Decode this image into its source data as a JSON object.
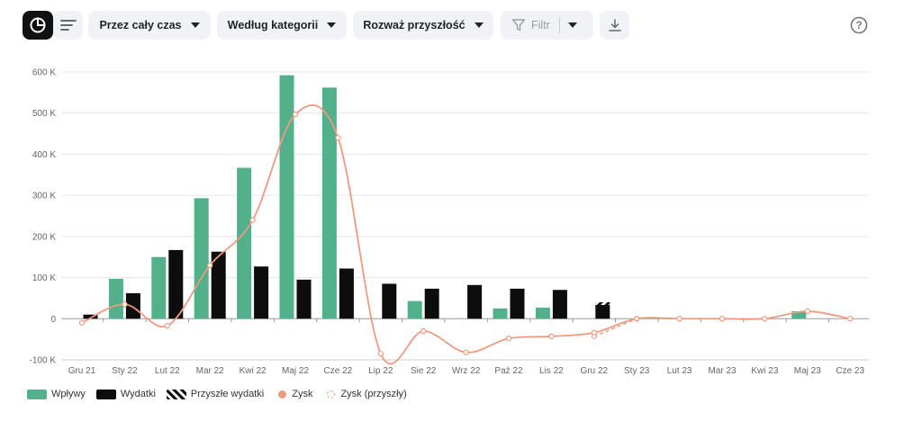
{
  "toolbar": {
    "period_label": "Przez cały czas",
    "group_label": "Według kategorii",
    "future_label": "Rozważ przyszłość",
    "filter_label": "Filtr"
  },
  "legend": {
    "income": "Wpływy",
    "expenses": "Wydatki",
    "future_expenses": "Przyszłe wydatki",
    "profit": "Zysk",
    "future_profit": "Zysk (przyszły)"
  },
  "colors": {
    "income": "#52b08a",
    "expenses": "#0d0d0d",
    "profit": "#ef9a80",
    "grid": "#e6e6e6",
    "axis_text": "#666666"
  },
  "chart_data": {
    "type": "bar",
    "categories": [
      "Gru 21",
      "Sty 22",
      "Lut 22",
      "Mar 22",
      "Kwi 22",
      "Maj 22",
      "Cze 22",
      "Lip 22",
      "Sie 22",
      "Wrz 22",
      "Paź 22",
      "Lis 22",
      "Gru 22",
      "Sty 23",
      "Lut 23",
      "Mar 23",
      "Kwi 23",
      "Maj 23",
      "Cze 23"
    ],
    "y_tick_labels": [
      "-100 K",
      "0",
      "100 K",
      "200 K",
      "300 K",
      "400 K",
      "500 K",
      "600 K"
    ],
    "ylim": [
      -100000,
      600000
    ],
    "grid": true,
    "legend_position": "bottom-left",
    "series": [
      {
        "name": "Wpływy",
        "type": "bar",
        "values": [
          0,
          97000,
          150000,
          293000,
          367000,
          592000,
          562000,
          0,
          43000,
          0,
          25000,
          27000,
          0,
          0,
          0,
          0,
          0,
          18000,
          0
        ]
      },
      {
        "name": "Wydatki",
        "type": "bar",
        "values": [
          10000,
          62000,
          167000,
          163000,
          127000,
          95000,
          122000,
          85000,
          73000,
          82000,
          73000,
          70000,
          40000,
          0,
          0,
          0,
          0,
          0,
          0
        ]
      },
      {
        "name": "Przyszłe wydatki",
        "type": "bar",
        "values": [
          0,
          0,
          0,
          0,
          0,
          0,
          0,
          0,
          0,
          0,
          0,
          0,
          5000,
          0,
          0,
          0,
          0,
          0,
          0
        ]
      },
      {
        "name": "Zysk",
        "type": "line",
        "values": [
          -10000,
          35000,
          -17000,
          130000,
          240000,
          497000,
          440000,
          -85000,
          -30000,
          -82000,
          -48000,
          -43000,
          -34000,
          0,
          0,
          0,
          0,
          18000,
          0
        ]
      },
      {
        "name": "Zysk (przyszły)",
        "type": "line",
        "values": [
          null,
          null,
          null,
          null,
          null,
          null,
          null,
          null,
          null,
          null,
          null,
          null,
          -43000,
          0,
          null,
          null,
          null,
          null,
          null
        ]
      }
    ]
  }
}
